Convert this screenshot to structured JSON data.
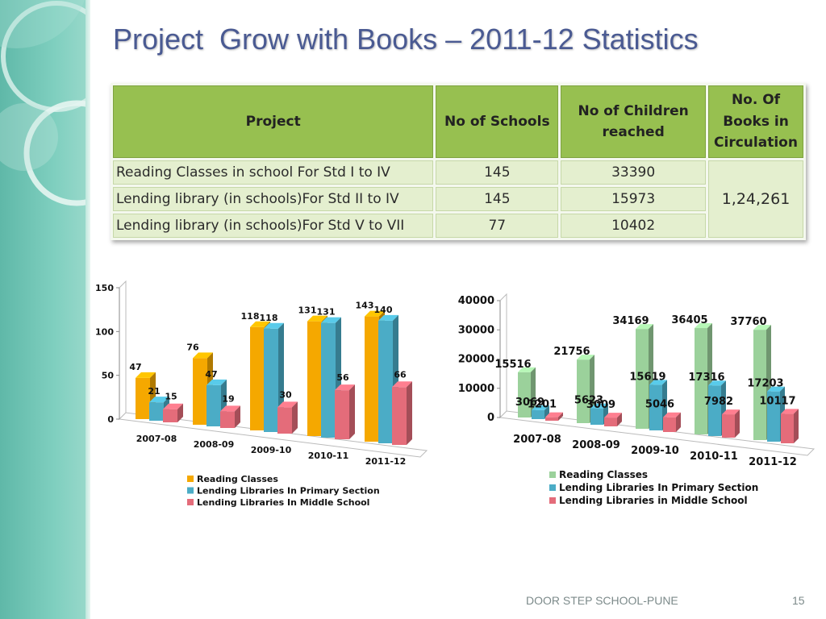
{
  "slide": {
    "title": "Project  Grow with Books – 2011-12 Statistics",
    "footer": "DOOR STEP SCHOOL-PUNE",
    "page_number": "15"
  },
  "table": {
    "headers": {
      "project": "Project",
      "schools": "No of Schools",
      "children": [
        "No of Children",
        "reached"
      ],
      "books": [
        "No. Of",
        "Books in",
        "Circulation"
      ]
    },
    "rows": [
      {
        "project": "Reading Classes in school For Std I to IV",
        "schools": "145",
        "children": "33390"
      },
      {
        "project": "Lending library (in schools)For Std II to IV",
        "schools": "145",
        "children": "15973"
      },
      {
        "project": "Lending library (in schools)For Std V to VII",
        "schools": "77",
        "children": "10402"
      }
    ],
    "books_total": "1,24,261"
  },
  "chart_data": [
    {
      "type": "bar",
      "categories": [
        "2007-08",
        "2008-09",
        "2009-10",
        "2010-11",
        "2011-12"
      ],
      "series": [
        {
          "name": "Reading Classes",
          "values": [
            47,
            76,
            118,
            131,
            143
          ],
          "color": "#f5a800"
        },
        {
          "name": "Lending Libraries In Primary Section",
          "values": [
            21,
            47,
            118,
            131,
            140
          ],
          "color": "#4bacc6"
        },
        {
          "name": "Lending Libraries In Middle School",
          "values": [
            15,
            19,
            30,
            56,
            66
          ],
          "color": "#e46c7a"
        }
      ],
      "yticks": [
        "0",
        "50",
        "100",
        "150"
      ],
      "ylim": [
        0,
        150
      ],
      "legend": "bottom",
      "grid": false
    },
    {
      "type": "bar",
      "categories": [
        "2007-08",
        "2008-09",
        "2009-10",
        "2010-11",
        "2011-12"
      ],
      "series": [
        {
          "name": "Reading Classes",
          "values": [
            15516,
            21756,
            34169,
            36405,
            37760
          ],
          "color": "#9bd19b"
        },
        {
          "name": "Lending Libraries In Primary Section",
          "values": [
            3069,
            5623,
            15619,
            17316,
            17203
          ],
          "color": "#4bacc6"
        },
        {
          "name": "Lending Libraries in Middle School",
          "values": [
            1201,
            3009,
            5046,
            7982,
            10117
          ],
          "color": "#e46c7a"
        }
      ],
      "yticks": [
        "0",
        "10000",
        "20000",
        "30000",
        "40000"
      ],
      "ylim": [
        0,
        40000
      ],
      "legend": "bottom",
      "grid": false
    }
  ]
}
